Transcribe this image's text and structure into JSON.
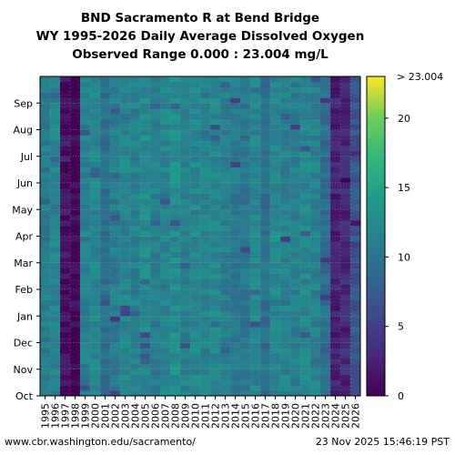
{
  "chart_data": {
    "type": "heatmap",
    "title_lines": [
      "BND Sacramento R at Bend Bridge",
      "WY 1995-2026 Daily Average Dissolved Oxygen",
      "Observed Range 0.000 : 23.004 mg/L"
    ],
    "xlabel": "",
    "ylabel": "",
    "x_categories": [
      "1995",
      "1996",
      "1997",
      "1998",
      "1999",
      "2000",
      "2001",
      "2002",
      "2003",
      "2004",
      "2005",
      "2006",
      "2007",
      "2008",
      "2009",
      "2010",
      "2011",
      "2012",
      "2013",
      "2014",
      "2015",
      "2016",
      "2017",
      "2018",
      "2019",
      "2020",
      "2021",
      "2022",
      "2023",
      "2024",
      "2025",
      "2026"
    ],
    "y_months": [
      "Oct",
      "Nov",
      "Dec",
      "Jan",
      "Feb",
      "Mar",
      "Apr",
      "May",
      "Jun",
      "Jul",
      "Aug",
      "Sep"
    ],
    "colorbar": {
      "min": 0,
      "max": 23.004,
      "ticks": [
        "0",
        "5",
        "10",
        "15",
        "20"
      ],
      "top_label": "> 23.004",
      "colormap": "viridis"
    },
    "year_profiles": [
      {
        "year": "1995",
        "value": 10.8
      },
      {
        "year": "1996",
        "value": 11.6
      },
      {
        "year": "1997",
        "value": 1.2
      },
      {
        "year": "1998",
        "value": 0.3
      },
      {
        "year": "1999",
        "value": 11.2
      },
      {
        "year": "2000",
        "value": 12.0
      },
      {
        "year": "2001",
        "value": 9.6
      },
      {
        "year": "2002",
        "value": 11.0
      },
      {
        "year": "2003",
        "value": 11.8
      },
      {
        "year": "2004",
        "value": 11.4
      },
      {
        "year": "2005",
        "value": 12.3
      },
      {
        "year": "2006",
        "value": 11.0
      },
      {
        "year": "2007",
        "value": 11.7
      },
      {
        "year": "2008",
        "value": 12.6
      },
      {
        "year": "2009",
        "value": 11.3
      },
      {
        "year": "2010",
        "value": 12.1
      },
      {
        "year": "2011",
        "value": 11.6
      },
      {
        "year": "2012",
        "value": 11.9
      },
      {
        "year": "2013",
        "value": 11.2
      },
      {
        "year": "2014",
        "value": 10.4
      },
      {
        "year": "2015",
        "value": 10.1
      },
      {
        "year": "2016",
        "value": 11.8
      },
      {
        "year": "2017",
        "value": 9.4
      },
      {
        "year": "2018",
        "value": 12.2
      },
      {
        "year": "2019",
        "value": 11.5
      },
      {
        "year": "2020",
        "value": 11.0
      },
      {
        "year": "2021",
        "value": 11.8
      },
      {
        "year": "2022",
        "value": 11.3
      },
      {
        "year": "2023",
        "value": 9.2
      },
      {
        "year": "2024",
        "value": 2.5
      },
      {
        "year": "2025",
        "value": 3.0
      },
      {
        "year": "2026",
        "value": 7.0
      }
    ],
    "missing_values": "white",
    "gridlines": "dotted, monthly and yearly"
  },
  "footer": {
    "left": "www.cbr.washington.edu/sacramento/",
    "right": "23 Nov 2025 15:46:19 PST"
  }
}
